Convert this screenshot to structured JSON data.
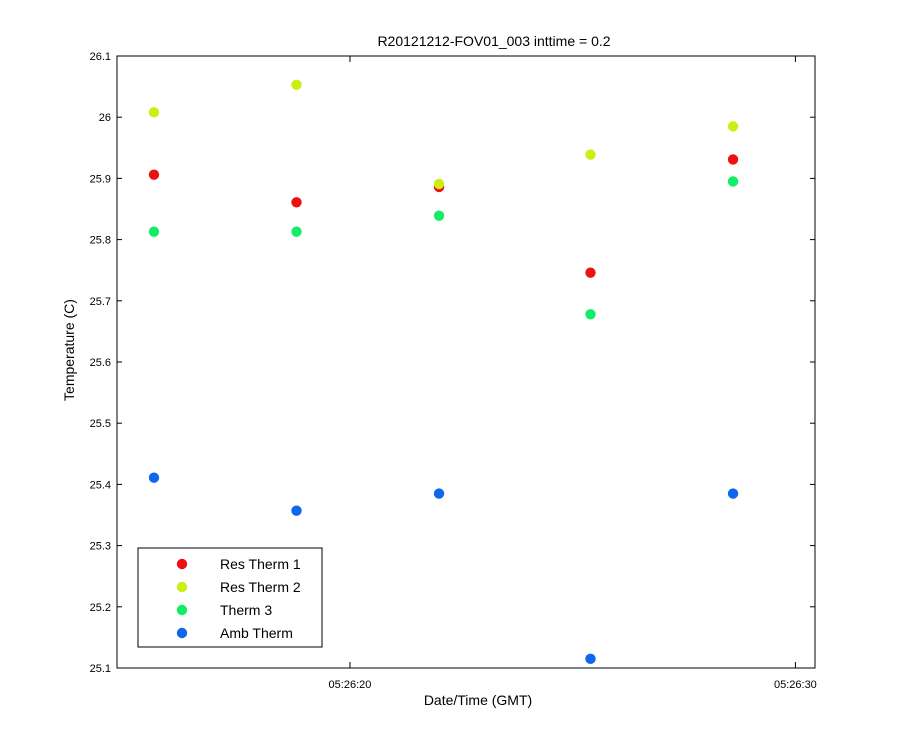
{
  "chart_data": {
    "type": "scatter",
    "title": "R20121212-FOV01_003 inttime = 0.2",
    "xlabel": "Date/Time (GMT)",
    "ylabel": "Temperature (C)",
    "ylim": [
      25.1,
      26.1
    ],
    "xlim": [
      "05:26:14.77",
      "05:26:30.44"
    ],
    "yticks": [
      "25.1",
      "25.2",
      "25.3",
      "25.4",
      "25.5",
      "25.6",
      "25.7",
      "25.8",
      "25.9",
      "26",
      "26.1"
    ],
    "xticks": [
      "05:26:20",
      "05:26:30"
    ],
    "x": [
      "05:26:15.6",
      "05:26:18.8",
      "05:26:22.0",
      "05:26:25.4",
      "05:26:28.6"
    ],
    "grid": false,
    "legend_position": "bottom-left",
    "series": [
      {
        "name": "Res Therm 1",
        "color": "#ee1111",
        "values": [
          25.906,
          25.861,
          25.886,
          25.746,
          25.931
        ]
      },
      {
        "name": "Res Therm 2",
        "color": "#ccee11",
        "values": [
          26.008,
          26.053,
          25.891,
          25.939,
          25.985
        ]
      },
      {
        "name": "Therm 3",
        "color": "#11ee66",
        "values": [
          25.813,
          25.813,
          25.839,
          25.678,
          25.895
        ]
      },
      {
        "name": "Amb Therm",
        "color": "#1166ee",
        "values": [
          25.411,
          25.357,
          25.385,
          25.115,
          25.385
        ]
      }
    ]
  }
}
